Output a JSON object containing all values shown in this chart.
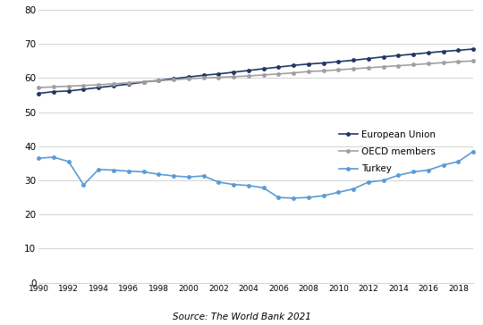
{
  "years": [
    1990,
    1991,
    1992,
    1993,
    1994,
    1995,
    1996,
    1997,
    1998,
    1999,
    2000,
    2001,
    2002,
    2003,
    2004,
    2005,
    2006,
    2007,
    2008,
    2009,
    2010,
    2011,
    2012,
    2013,
    2014,
    2015,
    2016,
    2017,
    2018,
    2019
  ],
  "eu": [
    55.5,
    56.0,
    56.2,
    56.7,
    57.2,
    57.7,
    58.2,
    58.8,
    59.3,
    59.8,
    60.3,
    60.8,
    61.2,
    61.7,
    62.2,
    62.7,
    63.2,
    63.7,
    64.1,
    64.4,
    64.8,
    65.2,
    65.7,
    66.2,
    66.6,
    67.0,
    67.4,
    67.8,
    68.1,
    68.5
  ],
  "oecd": [
    57.2,
    57.4,
    57.6,
    57.8,
    58.0,
    58.3,
    58.6,
    58.9,
    59.2,
    59.5,
    59.8,
    60.0,
    60.2,
    60.4,
    60.6,
    60.9,
    61.2,
    61.5,
    61.9,
    62.1,
    62.4,
    62.7,
    63.0,
    63.3,
    63.6,
    63.9,
    64.2,
    64.5,
    64.8,
    65.0
  ],
  "turkey": [
    36.5,
    36.8,
    35.5,
    28.7,
    33.2,
    33.0,
    32.7,
    32.5,
    31.8,
    31.3,
    31.0,
    31.3,
    29.5,
    28.8,
    28.5,
    27.8,
    25.0,
    24.8,
    25.0,
    25.5,
    26.5,
    27.5,
    29.5,
    30.0,
    31.5,
    32.5,
    33.0,
    34.5,
    35.5,
    38.5
  ],
  "eu_color": "#1f3864",
  "oecd_color": "#a0a0a0",
  "turkey_color": "#5b9bd5",
  "eu_label": "European Union",
  "oecd_label": "OECD members",
  "turkey_label": "Turkey",
  "ylim": [
    0,
    80
  ],
  "yticks": [
    0,
    10,
    20,
    30,
    40,
    50,
    60,
    70,
    80
  ],
  "source_text": "Source: The World Bank 2021",
  "markersize": 2.5,
  "linewidth": 1.2
}
